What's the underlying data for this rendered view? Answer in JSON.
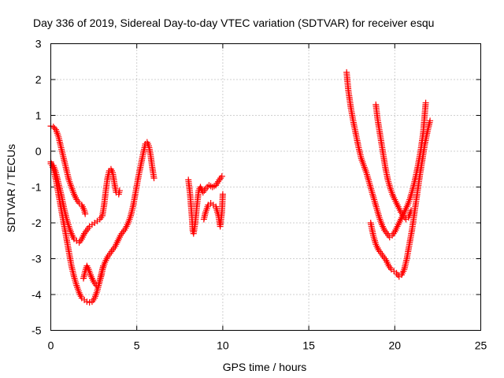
{
  "chart_data": {
    "type": "scatter",
    "title": "Day 336 of 2019, Sidereal Day-to-day VTEC variation (SDTVAR) for receiver esqu",
    "xlabel": "GPS time / hours",
    "ylabel": "SDTVAR / TECUs",
    "xlim": [
      0,
      25
    ],
    "ylim": [
      -5,
      3
    ],
    "xticks": [
      "0",
      "5",
      "10",
      "15",
      "20",
      "25"
    ],
    "yticks": [
      "-5",
      "-4",
      "-3",
      "-2",
      "-1",
      "0",
      "1",
      "2",
      "3"
    ],
    "grid": true,
    "marker": "+",
    "color": "#ff0000",
    "series": [
      {
        "points": [
          [
            0.0,
            0.7
          ],
          [
            0.15,
            0.68
          ],
          [
            0.3,
            0.6
          ],
          [
            0.45,
            0.4
          ],
          [
            0.6,
            0.1
          ],
          [
            0.75,
            -0.2
          ],
          [
            0.9,
            -0.5
          ],
          [
            1.05,
            -0.8
          ],
          [
            1.2,
            -1.0
          ],
          [
            1.35,
            -1.2
          ],
          [
            1.5,
            -1.35
          ],
          [
            1.65,
            -1.45
          ],
          [
            1.8,
            -1.5
          ],
          [
            1.95,
            -1.65
          ],
          [
            2.0,
            -1.75
          ]
        ]
      },
      {
        "points": [
          [
            0.0,
            -0.35
          ],
          [
            0.15,
            -0.4
          ],
          [
            0.3,
            -0.6
          ],
          [
            0.45,
            -0.9
          ],
          [
            0.6,
            -1.2
          ],
          [
            0.75,
            -1.55
          ],
          [
            0.9,
            -1.85
          ],
          [
            1.05,
            -2.1
          ],
          [
            1.2,
            -2.3
          ],
          [
            1.35,
            -2.45
          ],
          [
            1.5,
            -2.5
          ],
          [
            1.65,
            -2.55
          ],
          [
            1.8,
            -2.45
          ],
          [
            1.95,
            -2.3
          ],
          [
            2.1,
            -2.2
          ],
          [
            2.25,
            -2.1
          ],
          [
            2.4,
            -2.05
          ],
          [
            2.55,
            -2.0
          ],
          [
            2.7,
            -1.95
          ],
          [
            2.85,
            -1.9
          ],
          [
            3.0,
            -1.8
          ],
          [
            3.1,
            -1.5
          ],
          [
            3.2,
            -1.1
          ],
          [
            3.3,
            -0.75
          ],
          [
            3.4,
            -0.55
          ],
          [
            3.5,
            -0.5
          ],
          [
            3.6,
            -0.6
          ],
          [
            3.7,
            -0.9
          ],
          [
            3.8,
            -1.15
          ],
          [
            3.95,
            -1.2
          ],
          [
            4.0,
            -1.1
          ]
        ]
      },
      {
        "points": [
          [
            0.0,
            -0.3
          ],
          [
            0.15,
            -0.5
          ],
          [
            0.3,
            -0.8
          ],
          [
            0.45,
            -1.2
          ],
          [
            0.6,
            -1.6
          ],
          [
            0.75,
            -2.0
          ],
          [
            0.9,
            -2.4
          ],
          [
            1.05,
            -2.8
          ],
          [
            1.2,
            -3.2
          ],
          [
            1.35,
            -3.5
          ],
          [
            1.5,
            -3.75
          ],
          [
            1.65,
            -3.95
          ],
          [
            1.8,
            -4.1
          ],
          [
            1.95,
            -4.15
          ],
          [
            2.1,
            -4.2
          ],
          [
            2.25,
            -4.22
          ],
          [
            2.4,
            -4.2
          ],
          [
            2.55,
            -4.1
          ],
          [
            2.7,
            -3.9
          ],
          [
            2.85,
            -3.6
          ],
          [
            3.0,
            -3.3
          ],
          [
            3.15,
            -3.1
          ],
          [
            3.3,
            -2.95
          ],
          [
            3.45,
            -2.85
          ],
          [
            3.6,
            -2.75
          ],
          [
            3.75,
            -2.65
          ],
          [
            3.9,
            -2.5
          ],
          [
            4.05,
            -2.35
          ],
          [
            4.2,
            -2.25
          ],
          [
            4.35,
            -2.15
          ],
          [
            4.5,
            -2.0
          ],
          [
            4.65,
            -1.8
          ],
          [
            4.8,
            -1.5
          ],
          [
            4.95,
            -1.1
          ],
          [
            5.1,
            -0.7
          ],
          [
            5.25,
            -0.35
          ],
          [
            5.4,
            0.0
          ],
          [
            5.5,
            0.2
          ],
          [
            5.6,
            0.25
          ],
          [
            5.7,
            0.15
          ],
          [
            5.8,
            -0.1
          ],
          [
            5.9,
            -0.45
          ],
          [
            6.0,
            -0.75
          ]
        ]
      },
      {
        "points": [
          [
            1.9,
            -3.55
          ],
          [
            2.0,
            -3.35
          ],
          [
            2.1,
            -3.2
          ],
          [
            2.2,
            -3.3
          ],
          [
            2.35,
            -3.5
          ],
          [
            2.5,
            -3.65
          ],
          [
            2.65,
            -3.75
          ],
          [
            2.8,
            -3.7
          ],
          [
            2.95,
            -3.45
          ],
          [
            3.05,
            -3.2
          ]
        ]
      },
      {
        "points": [
          [
            8.0,
            -0.8
          ],
          [
            8.1,
            -1.2
          ],
          [
            8.2,
            -1.8
          ],
          [
            8.25,
            -2.2
          ],
          [
            8.3,
            -2.3
          ],
          [
            8.4,
            -2.0
          ],
          [
            8.5,
            -1.5
          ],
          [
            8.6,
            -1.1
          ],
          [
            8.7,
            -1.0
          ],
          [
            8.85,
            -1.15
          ],
          [
            9.0,
            -1.05
          ],
          [
            9.2,
            -0.95
          ],
          [
            9.4,
            -1.0
          ],
          [
            9.6,
            -0.95
          ],
          [
            9.8,
            -0.8
          ],
          [
            9.95,
            -0.7
          ]
        ]
      },
      {
        "points": [
          [
            8.9,
            -1.9
          ],
          [
            9.0,
            -1.7
          ],
          [
            9.15,
            -1.5
          ],
          [
            9.3,
            -1.45
          ],
          [
            9.45,
            -1.5
          ],
          [
            9.6,
            -1.55
          ],
          [
            9.75,
            -1.8
          ],
          [
            9.85,
            -2.1
          ],
          [
            9.95,
            -1.7
          ],
          [
            10.0,
            -1.2
          ]
        ]
      },
      {
        "points": [
          [
            17.2,
            2.2
          ],
          [
            17.3,
            1.7
          ],
          [
            17.45,
            1.2
          ],
          [
            17.6,
            0.8
          ],
          [
            17.75,
            0.45
          ],
          [
            17.9,
            0.1
          ],
          [
            18.05,
            -0.2
          ],
          [
            18.2,
            -0.4
          ],
          [
            18.35,
            -0.6
          ],
          [
            18.5,
            -0.85
          ],
          [
            18.65,
            -1.1
          ],
          [
            18.8,
            -1.35
          ],
          [
            18.95,
            -1.6
          ],
          [
            19.1,
            -1.85
          ],
          [
            19.25,
            -2.05
          ],
          [
            19.4,
            -2.2
          ],
          [
            19.55,
            -2.3
          ],
          [
            19.7,
            -2.4
          ],
          [
            19.85,
            -2.35
          ],
          [
            20.0,
            -2.25
          ],
          [
            20.15,
            -2.1
          ],
          [
            20.3,
            -1.95
          ],
          [
            20.45,
            -1.8
          ],
          [
            20.6,
            -1.65
          ],
          [
            20.75,
            -1.5
          ],
          [
            20.9,
            -1.3
          ],
          [
            21.05,
            -1.05
          ],
          [
            21.2,
            -0.75
          ],
          [
            21.35,
            -0.4
          ],
          [
            21.5,
            0.0
          ],
          [
            21.65,
            0.5
          ],
          [
            21.8,
            1.35
          ]
        ]
      },
      {
        "points": [
          [
            18.9,
            1.3
          ],
          [
            19.0,
            0.9
          ],
          [
            19.15,
            0.45
          ],
          [
            19.3,
            0.0
          ],
          [
            19.45,
            -0.45
          ],
          [
            19.6,
            -0.8
          ],
          [
            19.75,
            -1.05
          ],
          [
            19.9,
            -1.25
          ],
          [
            20.05,
            -1.4
          ],
          [
            20.2,
            -1.55
          ],
          [
            20.35,
            -1.7
          ],
          [
            20.5,
            -1.8
          ],
          [
            20.65,
            -1.9
          ],
          [
            20.8,
            -1.85
          ],
          [
            20.95,
            -1.65
          ]
        ]
      },
      {
        "points": [
          [
            18.6,
            -2.0
          ],
          [
            18.75,
            -2.35
          ],
          [
            18.9,
            -2.6
          ],
          [
            19.05,
            -2.75
          ],
          [
            19.2,
            -2.85
          ],
          [
            19.35,
            -2.95
          ],
          [
            19.5,
            -3.05
          ],
          [
            19.65,
            -3.2
          ],
          [
            19.8,
            -3.3
          ],
          [
            19.95,
            -3.35
          ],
          [
            20.1,
            -3.4
          ],
          [
            20.25,
            -3.5
          ],
          [
            20.4,
            -3.45
          ],
          [
            20.55,
            -3.3
          ],
          [
            20.7,
            -3.0
          ],
          [
            20.85,
            -2.6
          ],
          [
            21.0,
            -2.2
          ],
          [
            21.15,
            -1.7
          ],
          [
            21.3,
            -1.2
          ],
          [
            21.45,
            -0.7
          ],
          [
            21.6,
            -0.25
          ],
          [
            21.75,
            0.2
          ],
          [
            21.9,
            0.55
          ],
          [
            22.05,
            0.85
          ]
        ]
      }
    ]
  }
}
